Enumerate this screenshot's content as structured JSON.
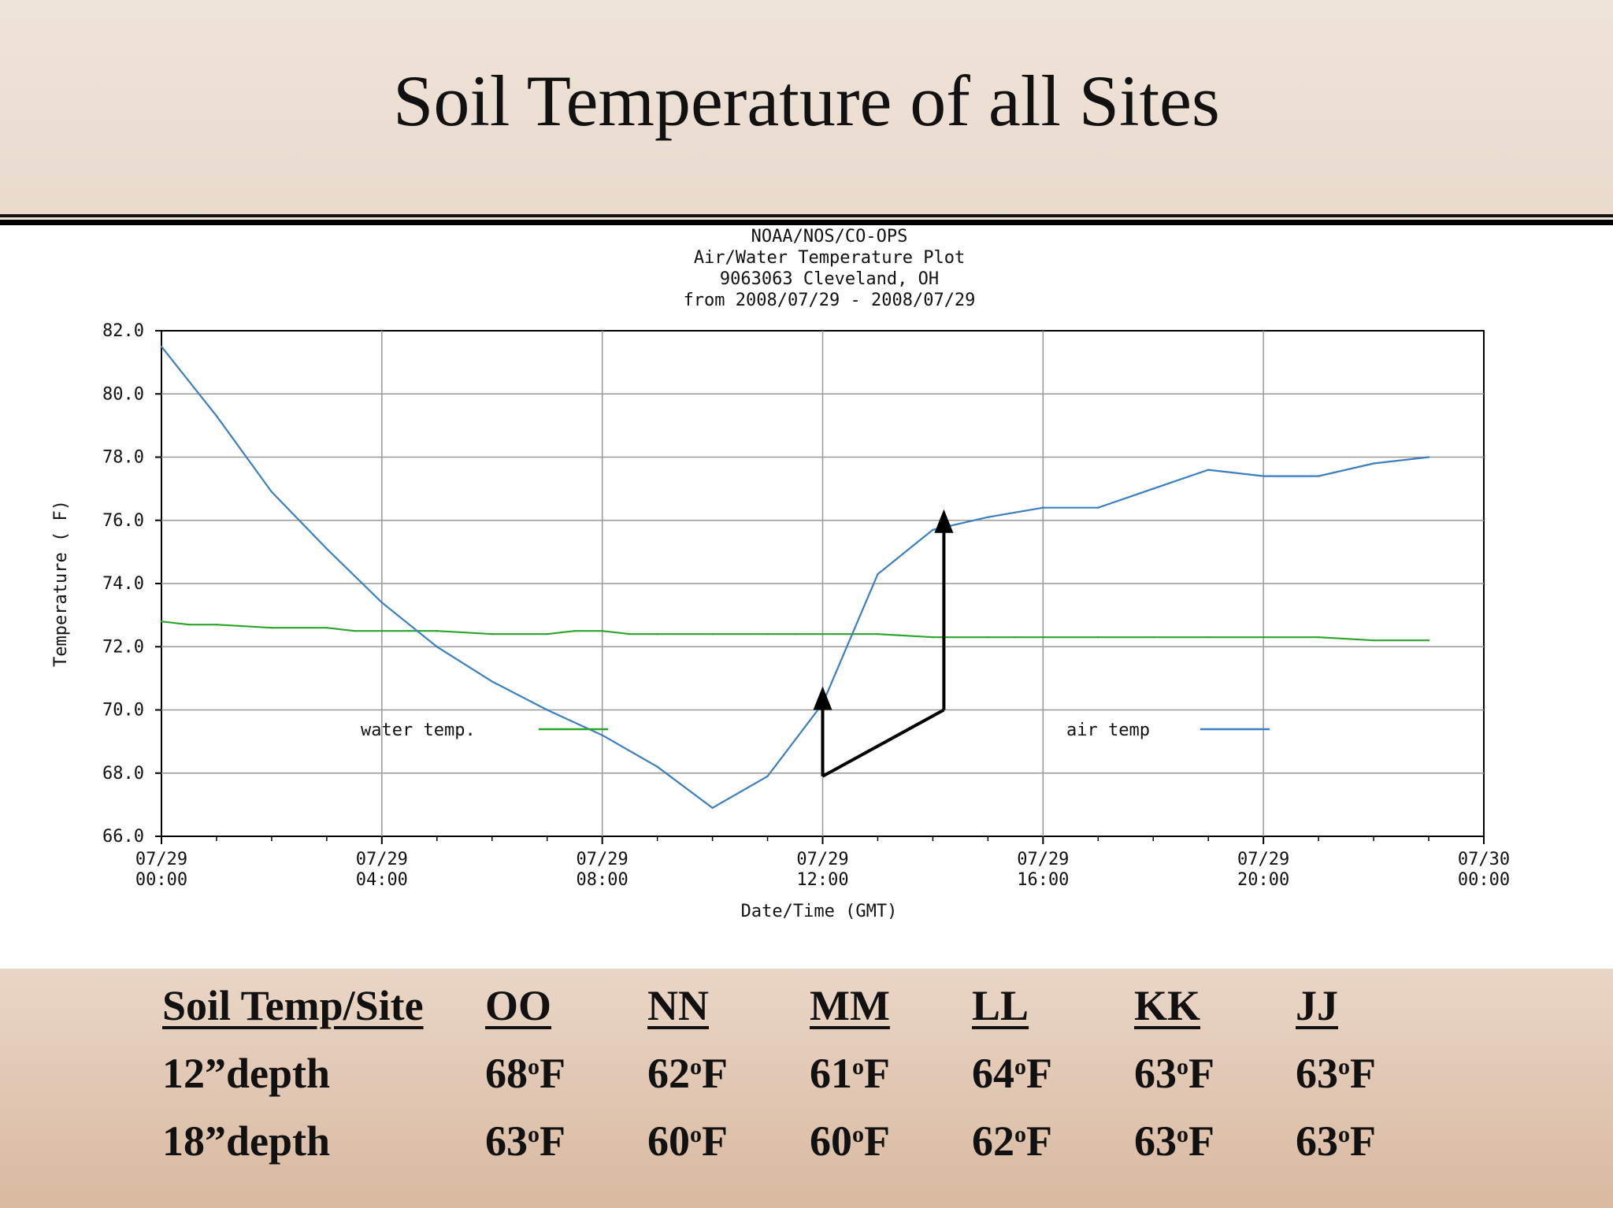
{
  "slide": {
    "title": "Soil Temperature of all Sites"
  },
  "chart_data": {
    "type": "line",
    "title_lines": [
      "NOAA/NOS/CO-OPS",
      "Air/Water Temperature Plot",
      "9063063 Cleveland, OH",
      "from 2008/07/29 - 2008/07/29"
    ],
    "xlabel": "Date/Time (GMT)",
    "ylabel": "Temperature ( F)",
    "ylim": [
      66.0,
      82.0
    ],
    "xlim_hours": [
      0,
      24
    ],
    "yticks": [
      "82.0",
      "80.0",
      "78.0",
      "76.0",
      "74.0",
      "72.0",
      "70.0",
      "68.0",
      "66.0"
    ],
    "xticks": [
      {
        "date": "07/29",
        "time": "00:00"
      },
      {
        "date": "07/29",
        "time": "04:00"
      },
      {
        "date": "07/29",
        "time": "08:00"
      },
      {
        "date": "07/29",
        "time": "12:00"
      },
      {
        "date": "07/29",
        "time": "16:00"
      },
      {
        "date": "07/29",
        "time": "20:00"
      },
      {
        "date": "07/30",
        "time": "00:00"
      }
    ],
    "grid": true,
    "legend_position": "bottom",
    "series": [
      {
        "name": "water temp.",
        "color": "#2aa52a",
        "x": [
          "00:00",
          "00:30",
          "01:00",
          "02:00",
          "03:00",
          "03:30",
          "04:00",
          "04:30",
          "05:00",
          "06:00",
          "07:00",
          "07:30",
          "08:00",
          "08:30",
          "09:00",
          "10:00",
          "11:00",
          "11:30",
          "12:00",
          "13:00",
          "14:00",
          "15:00",
          "15:30",
          "16:00",
          "17:00",
          "18:00",
          "19:00",
          "20:00",
          "21:00",
          "22:00",
          "23:00"
        ],
        "y": [
          72.8,
          72.7,
          72.7,
          72.6,
          72.6,
          72.5,
          72.5,
          72.5,
          72.5,
          72.4,
          72.4,
          72.5,
          72.5,
          72.4,
          72.4,
          72.4,
          72.4,
          72.4,
          72.4,
          72.4,
          72.3,
          72.3,
          72.3,
          72.3,
          72.3,
          72.3,
          72.3,
          72.3,
          72.3,
          72.2,
          72.2
        ]
      },
      {
        "name": "air temp",
        "color": "#3a7fbf",
        "x": [
          "00:00",
          "01:00",
          "02:00",
          "03:00",
          "04:00",
          "05:00",
          "06:00",
          "07:00",
          "08:00",
          "09:00",
          "10:00",
          "11:00",
          "12:00",
          "13:00",
          "14:00",
          "15:00",
          "16:00",
          "17:00",
          "18:00",
          "19:00",
          "20:00",
          "21:00",
          "22:00",
          "23:00"
        ],
        "y": [
          81.5,
          79.3,
          76.9,
          75.1,
          73.4,
          72.0,
          70.9,
          70.0,
          69.2,
          68.2,
          66.9,
          67.9,
          70.2,
          74.3,
          75.7,
          76.1,
          76.4,
          76.4,
          77.0,
          77.6,
          77.4,
          77.4,
          77.8,
          78.0
        ]
      }
    ],
    "annotations": [
      {
        "type": "arrow",
        "from": [
          "12:00",
          67.9
        ],
        "to": [
          "12:00",
          70.4
        ]
      },
      {
        "type": "line",
        "from": [
          "12:00",
          67.9
        ],
        "to": [
          "14:12",
          70.0
        ]
      },
      {
        "type": "arrow",
        "from": [
          "14:12",
          70.0
        ],
        "to": [
          "14:12",
          76.0
        ]
      }
    ]
  },
  "table": {
    "header": [
      "Soil Temp/Site",
      "OO",
      "NN",
      "MM",
      "LL",
      "KK",
      "JJ"
    ],
    "rows": [
      {
        "label": "12”depth",
        "values": [
          "68",
          "62",
          "61",
          "64",
          "63",
          "63"
        ]
      },
      {
        "label": "18”depth",
        "values": [
          "63",
          "60",
          "60",
          "62",
          "63",
          "63"
        ]
      }
    ],
    "unit_sup": "o",
    "unit": "F"
  }
}
